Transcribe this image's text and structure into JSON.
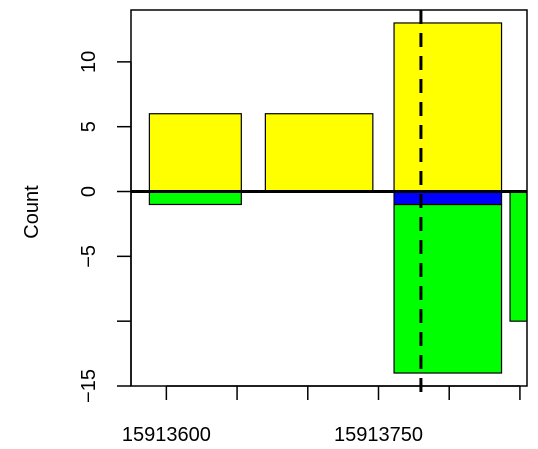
{
  "chart_data": {
    "type": "bar",
    "title": "",
    "xlabel": "",
    "ylabel": "Count",
    "xlim": [
      15913575,
      15913855
    ],
    "ylim": [
      -15,
      14
    ],
    "x_ticks": [
      15913600,
      15913650,
      15913700,
      15913750,
      15913800,
      15913850
    ],
    "x_tick_labels": [
      "15913600",
      "",
      "",
      "15913750",
      "",
      ""
    ],
    "y_ticks": [
      -15,
      -10,
      -5,
      0,
      5,
      10
    ],
    "y_tick_labels": [
      "−15",
      "",
      "−5",
      "0",
      "5",
      "10"
    ],
    "vline_x": 15913780,
    "grid": false,
    "colors": {
      "positive": "#ffff00",
      "negative": "#00ff00",
      "mid": "#0000ff"
    },
    "series": [
      {
        "color": "#ffff00",
        "bars": [
          {
            "x0": 15913588,
            "x1": 15913653,
            "value": 6
          },
          {
            "x0": 15913670,
            "x1": 15913746,
            "value": 6
          },
          {
            "x0": 15913761,
            "x1": 15913837,
            "value": 13
          }
        ]
      },
      {
        "color": "#00ff00",
        "bars": [
          {
            "x0": 15913588,
            "x1": 15913653,
            "from": 0,
            "to": -1
          },
          {
            "x0": 15913761,
            "x1": 15913837,
            "from": -1,
            "to": -14
          },
          {
            "x0": 15913843,
            "x1": 15913878,
            "from": 0,
            "to": -10
          }
        ]
      },
      {
        "color": "#0000ff",
        "bars": [
          {
            "x0": 15913761,
            "x1": 15913837,
            "from": 0,
            "to": -1
          }
        ]
      }
    ]
  }
}
